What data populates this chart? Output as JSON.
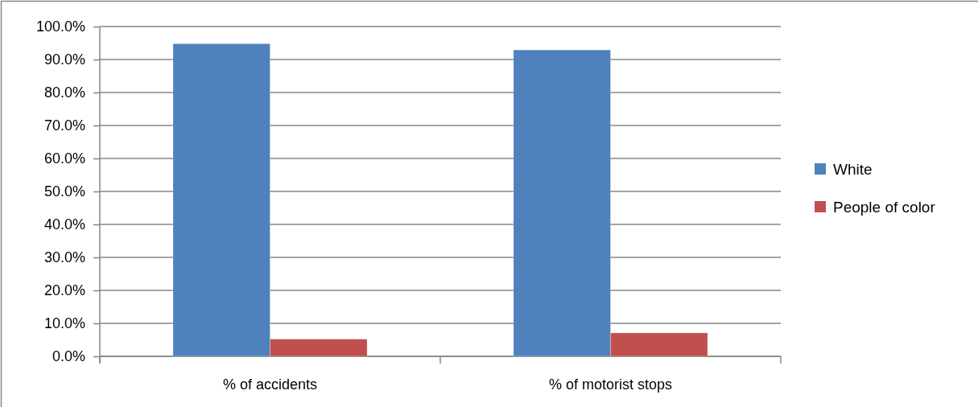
{
  "chart_data": {
    "type": "bar",
    "categories": [
      "% of accidents",
      "% of motorist stops"
    ],
    "series": [
      {
        "name": "White",
        "color": "#4f81bd",
        "values": [
          94.8,
          92.9
        ]
      },
      {
        "name": "People of color",
        "color": "#c0504d",
        "values": [
          5.2,
          7.1
        ]
      }
    ],
    "ylim": [
      0,
      100
    ],
    "yticks": [
      {
        "value": 0,
        "label": "0.0%"
      },
      {
        "value": 10,
        "label": "10.0%"
      },
      {
        "value": 20,
        "label": "20.0%"
      },
      {
        "value": 30,
        "label": "30.0%"
      },
      {
        "value": 40,
        "label": "40.0%"
      },
      {
        "value": 50,
        "label": "50.0%"
      },
      {
        "value": 60,
        "label": "60.0%"
      },
      {
        "value": 70,
        "label": "70.0%"
      },
      {
        "value": 80,
        "label": "80.0%"
      },
      {
        "value": 90,
        "label": "90.0%"
      },
      {
        "value": 100,
        "label": "100.0%"
      }
    ],
    "grid": "y",
    "legend": "right"
  }
}
